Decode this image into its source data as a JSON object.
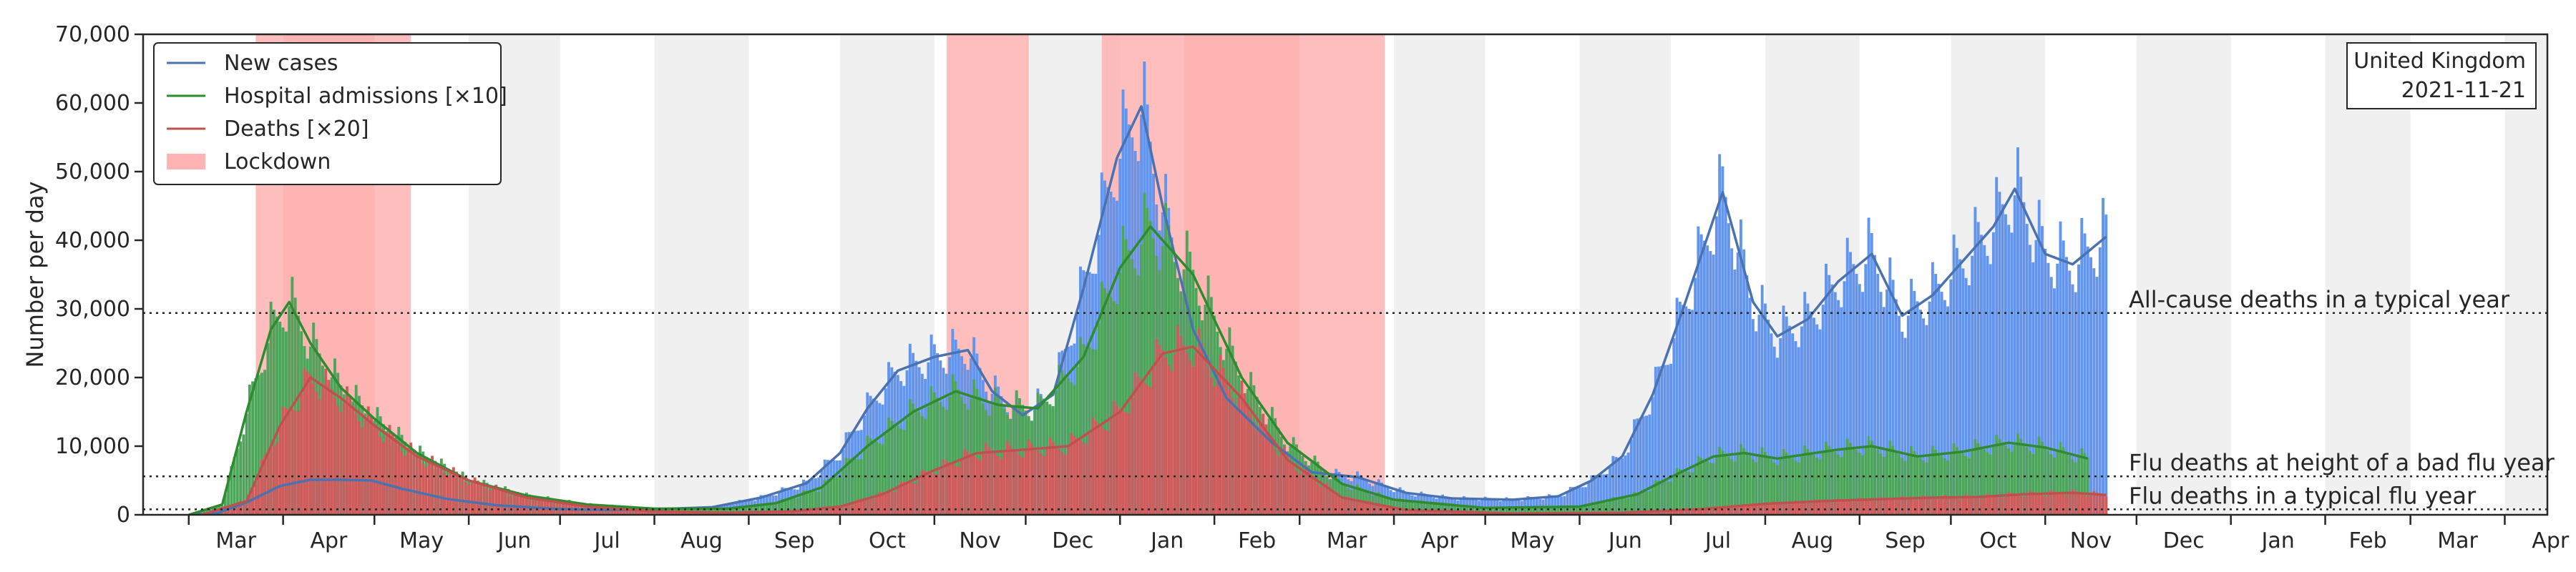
{
  "chart_data": {
    "type": "bar",
    "title": "",
    "ylabel": "Number per day",
    "ylim": [
      0,
      70000
    ],
    "yticks": [
      "0",
      "10,000",
      "20,000",
      "30,000",
      "40,000",
      "50,000",
      "60,000",
      "70,000"
    ],
    "xlim": [
      "2020-02-15",
      "2022-04-15"
    ],
    "month_labels": [
      {
        "date": "2020-03-01",
        "label": "Mar"
      },
      {
        "date": "2020-04-01",
        "label": "Apr"
      },
      {
        "date": "2020-05-01",
        "label": "May"
      },
      {
        "date": "2020-06-01",
        "label": "Jun"
      },
      {
        "date": "2020-07-01",
        "label": "Jul"
      },
      {
        "date": "2020-08-01",
        "label": "Aug"
      },
      {
        "date": "2020-09-01",
        "label": "Sep"
      },
      {
        "date": "2020-10-01",
        "label": "Oct"
      },
      {
        "date": "2020-11-01",
        "label": "Nov"
      },
      {
        "date": "2020-12-01",
        "label": "Dec"
      },
      {
        "date": "2021-01-01",
        "label": "Jan"
      },
      {
        "date": "2021-02-01",
        "label": "Feb"
      },
      {
        "date": "2021-03-01",
        "label": "Mar"
      },
      {
        "date": "2021-04-01",
        "label": "Apr"
      },
      {
        "date": "2021-05-01",
        "label": "May"
      },
      {
        "date": "2021-06-01",
        "label": "Jun"
      },
      {
        "date": "2021-07-01",
        "label": "Jul"
      },
      {
        "date": "2021-08-01",
        "label": "Aug"
      },
      {
        "date": "2021-09-01",
        "label": "Sep"
      },
      {
        "date": "2021-10-01",
        "label": "Oct"
      },
      {
        "date": "2021-11-01",
        "label": "Nov"
      },
      {
        "date": "2021-12-01",
        "label": "Dec"
      },
      {
        "date": "2022-01-01",
        "label": "Jan"
      },
      {
        "date": "2022-02-01",
        "label": "Feb"
      },
      {
        "date": "2022-03-01",
        "label": "Mar"
      },
      {
        "date": "2022-04-01",
        "label": "Apr"
      }
    ],
    "lockdowns": [
      {
        "start": "2020-03-23",
        "end": "2020-05-13"
      },
      {
        "start": "2020-04-01",
        "end": "2020-05-01"
      },
      {
        "start": "2020-11-05",
        "end": "2020-12-02"
      },
      {
        "start": "2020-12-26",
        "end": "2021-03-29"
      },
      {
        "start": "2021-01-22",
        "end": "2021-03-01"
      }
    ],
    "reference_lines": [
      {
        "value": 29400,
        "label": "All-cause deaths in a typical year"
      },
      {
        "value": 5600,
        "label": "Flu deaths at height of a bad flu year"
      },
      {
        "value": 800,
        "label": "Flu deaths in a typical flu year"
      }
    ],
    "annotation": {
      "line1": "United Kingdom",
      "line2": "2021-11-21"
    },
    "legend": {
      "position": "top-left",
      "entries": [
        "New cases",
        "Hospital admissions [×10]",
        "Deaths [×20]",
        "Lockdown"
      ]
    },
    "colors": {
      "cases_bar": "#6495ED",
      "cases_line": "#4A72B0",
      "admissions_bar": "#4FA45C",
      "admissions_line": "#2E8B2E",
      "deaths_bar": "#CD5C5C",
      "deaths_line": "#C0504D",
      "lockdown": "#FFB3B3",
      "weekend_band": "#F0F0F0"
    },
    "series": [
      {
        "name": "New cases",
        "points": [
          [
            "2020-03-01",
            30
          ],
          [
            "2020-03-10",
            200
          ],
          [
            "2020-03-20",
            1800
          ],
          [
            "2020-03-31",
            4200
          ],
          [
            "2020-04-10",
            5100
          ],
          [
            "2020-04-20",
            5100
          ],
          [
            "2020-04-30",
            5000
          ],
          [
            "2020-05-10",
            3800
          ],
          [
            "2020-05-25",
            2300
          ],
          [
            "2020-06-10",
            1400
          ],
          [
            "2020-06-30",
            850
          ],
          [
            "2020-07-15",
            700
          ],
          [
            "2020-08-01",
            800
          ],
          [
            "2020-08-20",
            1100
          ],
          [
            "2020-09-05",
            2500
          ],
          [
            "2020-09-20",
            4600
          ],
          [
            "2020-10-01",
            9000
          ],
          [
            "2020-10-10",
            15500
          ],
          [
            "2020-10-20",
            21000
          ],
          [
            "2020-11-01",
            23000
          ],
          [
            "2020-11-12",
            24000
          ],
          [
            "2020-11-20",
            18000
          ],
          [
            "2020-11-30",
            14500
          ],
          [
            "2020-12-10",
            17500
          ],
          [
            "2020-12-20",
            33000
          ],
          [
            "2020-12-31",
            52000
          ],
          [
            "2021-01-08",
            59500
          ],
          [
            "2021-01-15",
            45000
          ],
          [
            "2021-01-25",
            27000
          ],
          [
            "2021-02-05",
            17000
          ],
          [
            "2021-02-20",
            10500
          ],
          [
            "2021-03-05",
            6200
          ],
          [
            "2021-03-20",
            5500
          ],
          [
            "2021-04-05",
            3200
          ],
          [
            "2021-04-20",
            2400
          ],
          [
            "2021-05-10",
            2200
          ],
          [
            "2021-05-25",
            2700
          ],
          [
            "2021-06-05",
            5000
          ],
          [
            "2021-06-15",
            8500
          ],
          [
            "2021-06-25",
            17500
          ],
          [
            "2021-07-05",
            30000
          ],
          [
            "2021-07-18",
            47000
          ],
          [
            "2021-07-28",
            31000
          ],
          [
            "2021-08-05",
            26000
          ],
          [
            "2021-08-15",
            28500
          ],
          [
            "2021-08-25",
            34000
          ],
          [
            "2021-09-05",
            38000
          ],
          [
            "2021-09-15",
            29000
          ],
          [
            "2021-09-25",
            32000
          ],
          [
            "2021-10-05",
            37000
          ],
          [
            "2021-10-15",
            42000
          ],
          [
            "2021-10-22",
            47500
          ],
          [
            "2021-11-01",
            38000
          ],
          [
            "2021-11-10",
            36500
          ],
          [
            "2021-11-21",
            40500
          ]
        ]
      },
      {
        "name": "Hospital admissions [×10]",
        "points": [
          [
            "2020-03-01",
            0
          ],
          [
            "2020-03-12",
            1500
          ],
          [
            "2020-03-20",
            15000
          ],
          [
            "2020-03-28",
            27000
          ],
          [
            "2020-04-03",
            31000
          ],
          [
            "2020-04-10",
            25000
          ],
          [
            "2020-04-20",
            18500
          ],
          [
            "2020-05-01",
            14000
          ],
          [
            "2020-05-15",
            9000
          ],
          [
            "2020-06-01",
            5000
          ],
          [
            "2020-06-20",
            2800
          ],
          [
            "2020-07-10",
            1500
          ],
          [
            "2020-08-01",
            900
          ],
          [
            "2020-08-25",
            900
          ],
          [
            "2020-09-10",
            1700
          ],
          [
            "2020-09-25",
            4000
          ],
          [
            "2020-10-10",
            10000
          ],
          [
            "2020-10-25",
            15000
          ],
          [
            "2020-11-08",
            18000
          ],
          [
            "2020-11-22",
            16000
          ],
          [
            "2020-12-05",
            15500
          ],
          [
            "2020-12-20",
            23000
          ],
          [
            "2021-01-01",
            36000
          ],
          [
            "2021-01-11",
            42000
          ],
          [
            "2021-01-25",
            35000
          ],
          [
            "2021-02-10",
            20000
          ],
          [
            "2021-02-25",
            10500
          ],
          [
            "2021-03-15",
            4500
          ],
          [
            "2021-04-01",
            2200
          ],
          [
            "2021-05-01",
            1000
          ],
          [
            "2021-06-01",
            1200
          ],
          [
            "2021-06-20",
            3000
          ],
          [
            "2021-07-01",
            5500
          ],
          [
            "2021-07-15",
            8500
          ],
          [
            "2021-07-25",
            9000
          ],
          [
            "2021-08-05",
            8200
          ],
          [
            "2021-08-25",
            9500
          ],
          [
            "2021-09-05",
            10000
          ],
          [
            "2021-09-20",
            8500
          ],
          [
            "2021-10-05",
            9200
          ],
          [
            "2021-10-20",
            10500
          ],
          [
            "2021-11-01",
            9800
          ],
          [
            "2021-11-15",
            8200
          ]
        ]
      },
      {
        "name": "Deaths [×20]",
        "points": [
          [
            "2020-03-05",
            0
          ],
          [
            "2020-03-20",
            2000
          ],
          [
            "2020-03-31",
            13000
          ],
          [
            "2020-04-10",
            20000
          ],
          [
            "2020-04-20",
            17000
          ],
          [
            "2020-05-01",
            13000
          ],
          [
            "2020-05-15",
            8500
          ],
          [
            "2020-06-01",
            5000
          ],
          [
            "2020-06-20",
            2500
          ],
          [
            "2020-07-10",
            1200
          ],
          [
            "2020-08-01",
            500
          ],
          [
            "2020-08-25",
            300
          ],
          [
            "2020-09-15",
            500
          ],
          [
            "2020-10-01",
            1200
          ],
          [
            "2020-10-15",
            3000
          ],
          [
            "2020-11-01",
            6500
          ],
          [
            "2020-11-15",
            9000
          ],
          [
            "2020-12-01",
            9500
          ],
          [
            "2020-12-15",
            10000
          ],
          [
            "2021-01-01",
            15000
          ],
          [
            "2021-01-15",
            23500
          ],
          [
            "2021-01-25",
            24500
          ],
          [
            "2021-02-10",
            17000
          ],
          [
            "2021-02-25",
            8000
          ],
          [
            "2021-03-15",
            2500
          ],
          [
            "2021-04-05",
            700
          ],
          [
            "2021-05-10",
            200
          ],
          [
            "2021-06-15",
            300
          ],
          [
            "2021-07-10",
            800
          ],
          [
            "2021-08-01",
            1600
          ],
          [
            "2021-08-20",
            2000
          ],
          [
            "2021-09-10",
            2300
          ],
          [
            "2021-09-25",
            2500
          ],
          [
            "2021-10-10",
            2600
          ],
          [
            "2021-10-25",
            3000
          ],
          [
            "2021-11-10",
            3200
          ],
          [
            "2021-11-21",
            2900
          ]
        ]
      }
    ]
  }
}
